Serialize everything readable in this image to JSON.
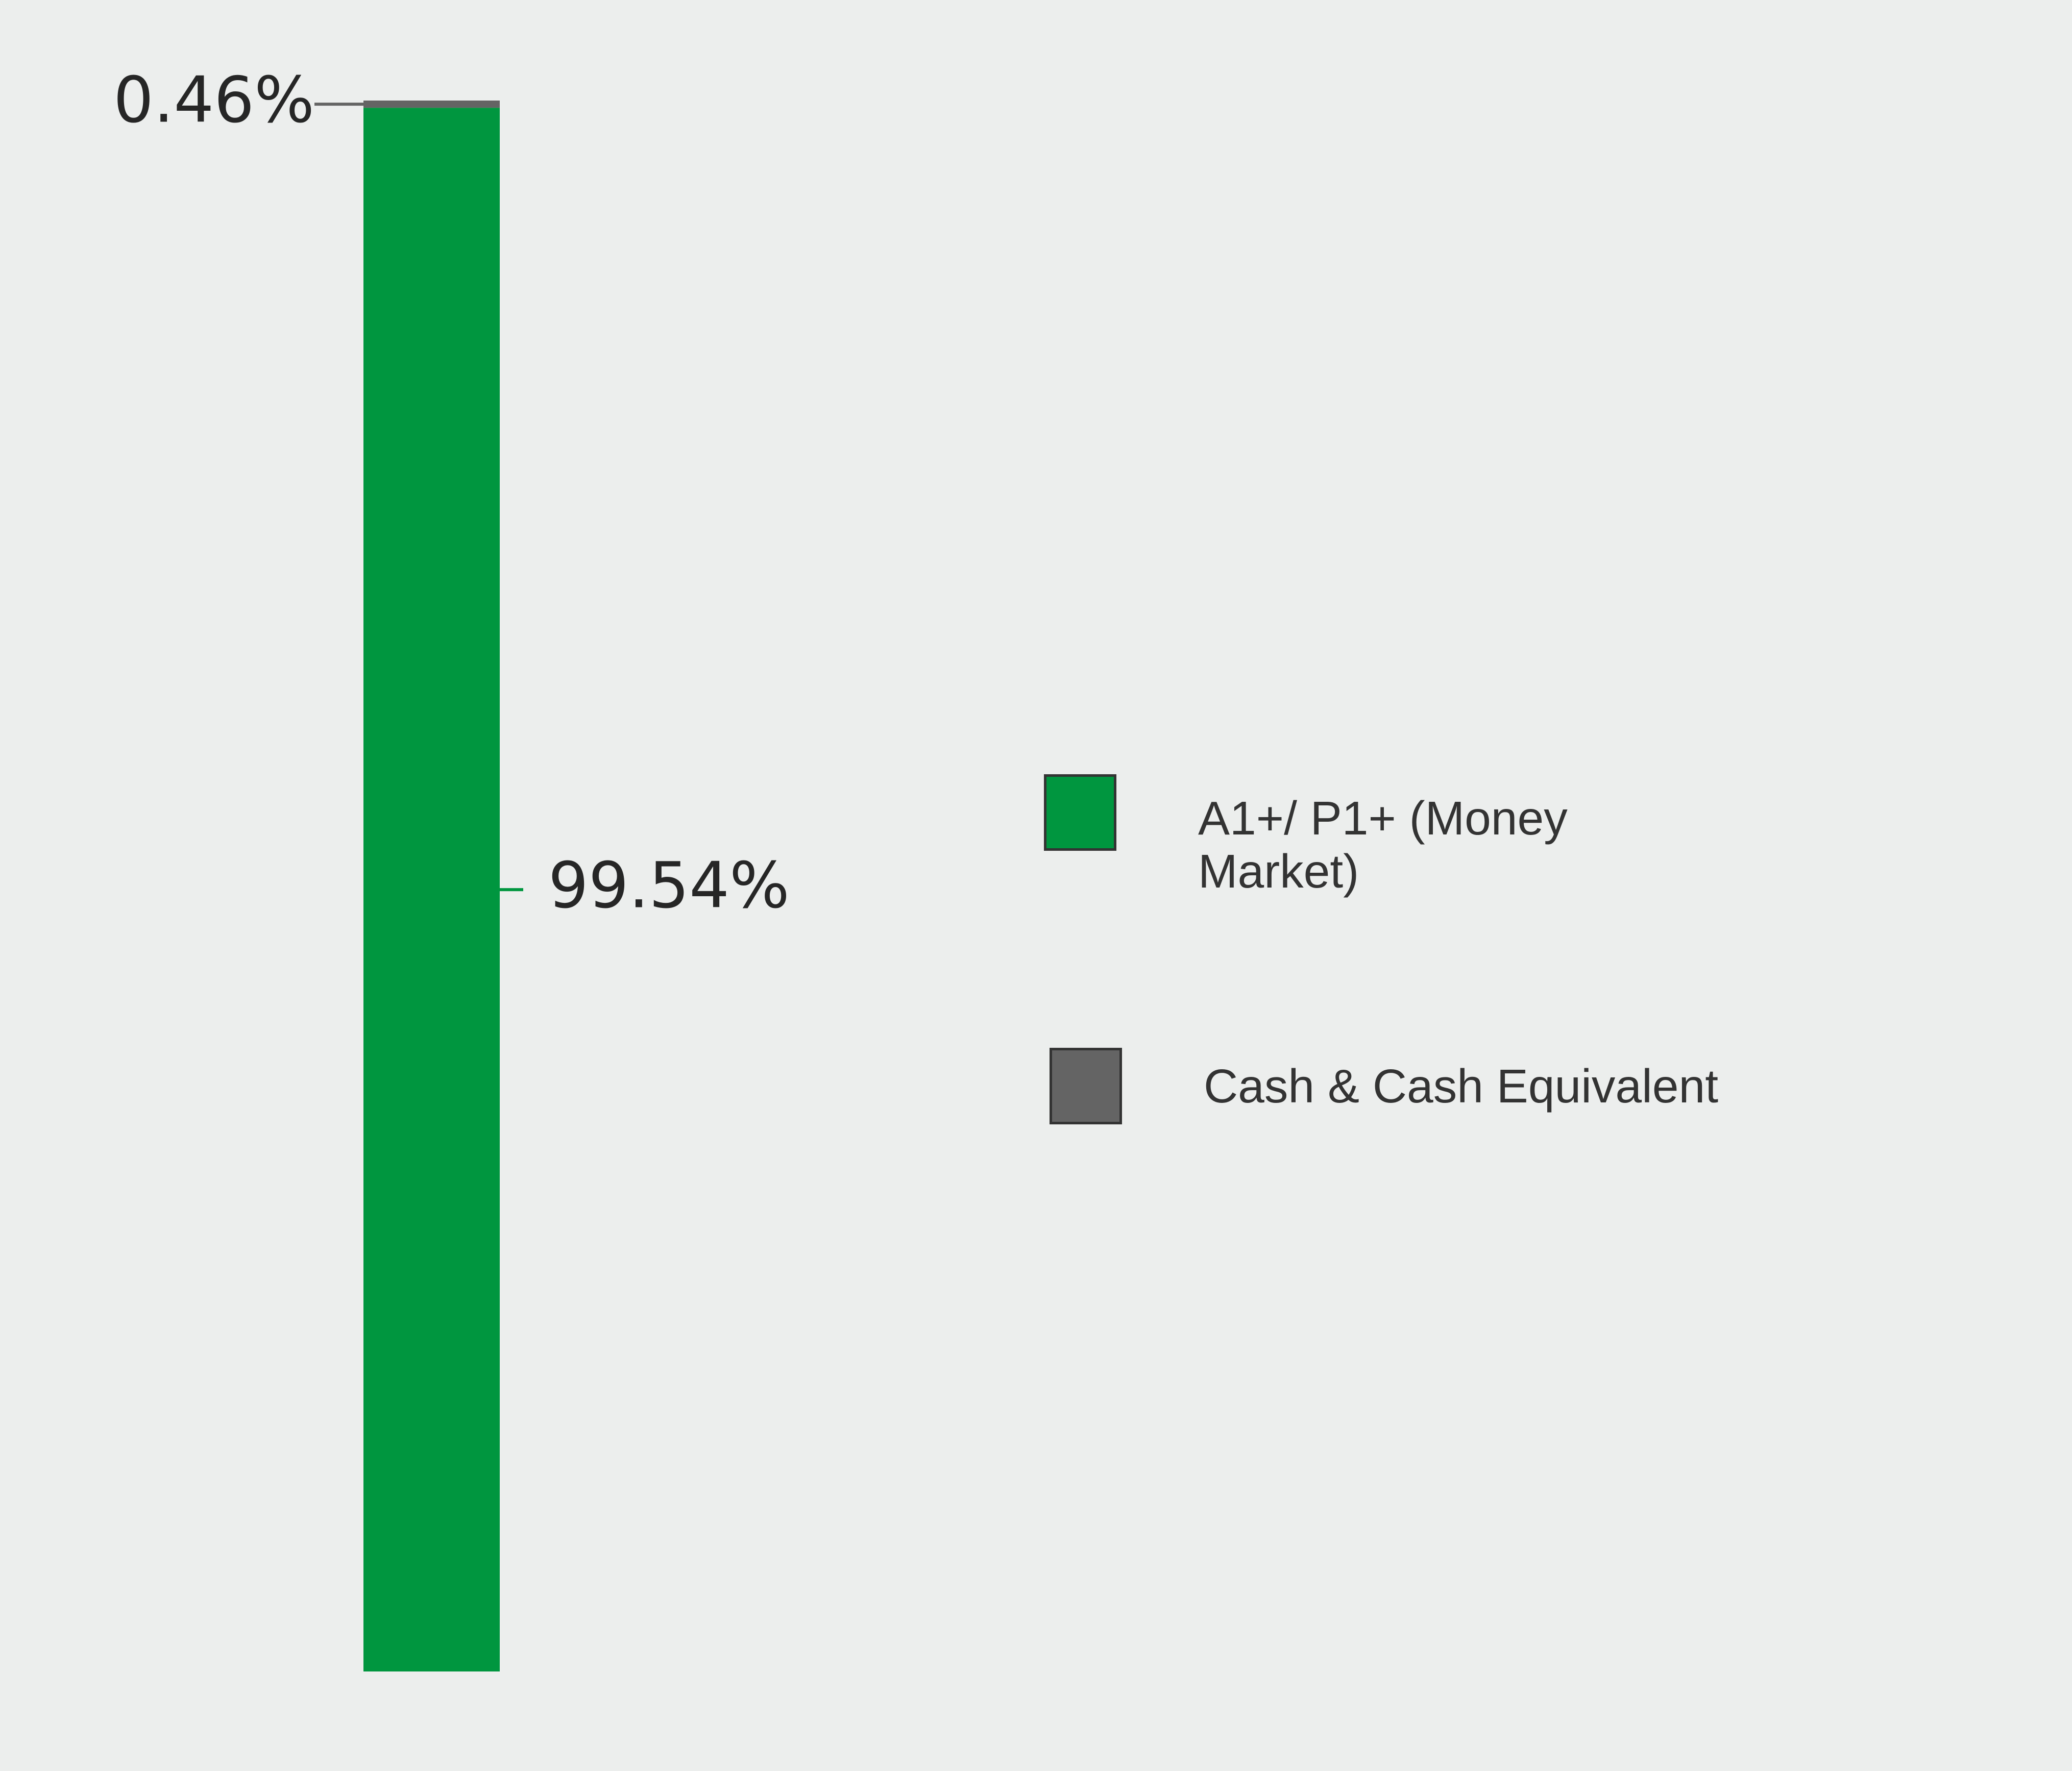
{
  "chart_data": {
    "type": "stacked_bar",
    "series": [
      {
        "name": "A1+/ P1+ (Money Market)",
        "color": "#00963f",
        "values": [
          99.54
        ],
        "value_labels": [
          "99.54%"
        ]
      },
      {
        "name": "Cash & Cash Equivalent",
        "color": "#646464",
        "values": [
          0.46
        ],
        "value_labels": [
          "0.46%"
        ]
      }
    ]
  }
}
